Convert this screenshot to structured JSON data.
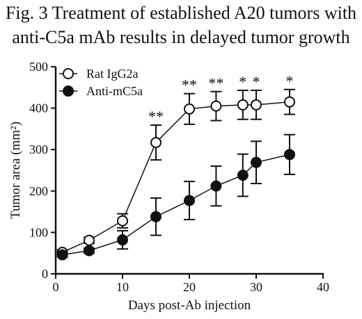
{
  "figure": {
    "title_line1": "Fig. 3 Treatment of established A20 tumors with",
    "title_line2": "anti-C5a mAb results in delayed tumor growth"
  },
  "chart_data": {
    "type": "line",
    "xlabel": "Days post-Ab injection",
    "ylabel": "Tumor area (mm²)",
    "xlim": [
      0,
      40
    ],
    "ylim": [
      0,
      500
    ],
    "x_ticks": [
      "0",
      "10",
      "20",
      "30",
      "40"
    ],
    "y_ticks": [
      "0",
      "100",
      "200",
      "300",
      "400",
      "500"
    ],
    "grid": false,
    "legend_position": "top-left",
    "series": [
      {
        "name": "Rat IgG2a",
        "marker": "open-circle",
        "color": "#111111",
        "x": [
          1,
          5,
          10,
          15,
          20,
          24,
          28,
          30,
          35
        ],
        "y": [
          52,
          81,
          128,
          317,
          398,
          405,
          408,
          408,
          415
        ],
        "err": [
          6,
          7,
          17,
          42,
          37,
          35,
          35,
          35,
          30
        ]
      },
      {
        "name": "Anti-mC5a",
        "marker": "filled-circle",
        "color": "#111111",
        "x": [
          1,
          5,
          10,
          15,
          20,
          24,
          28,
          30,
          35
        ],
        "y": [
          46,
          56,
          82,
          138,
          177,
          212,
          238,
          269,
          288
        ],
        "err": [
          5,
          6,
          22,
          45,
          46,
          48,
          51,
          51,
          48
        ]
      }
    ],
    "annotations": [
      {
        "x": 15,
        "text": "**"
      },
      {
        "x": 20,
        "text": "**"
      },
      {
        "x": 24,
        "text": "**"
      },
      {
        "x": 28,
        "text": "*"
      },
      {
        "x": 30,
        "text": "*"
      },
      {
        "x": 35,
        "text": "*"
      }
    ]
  }
}
